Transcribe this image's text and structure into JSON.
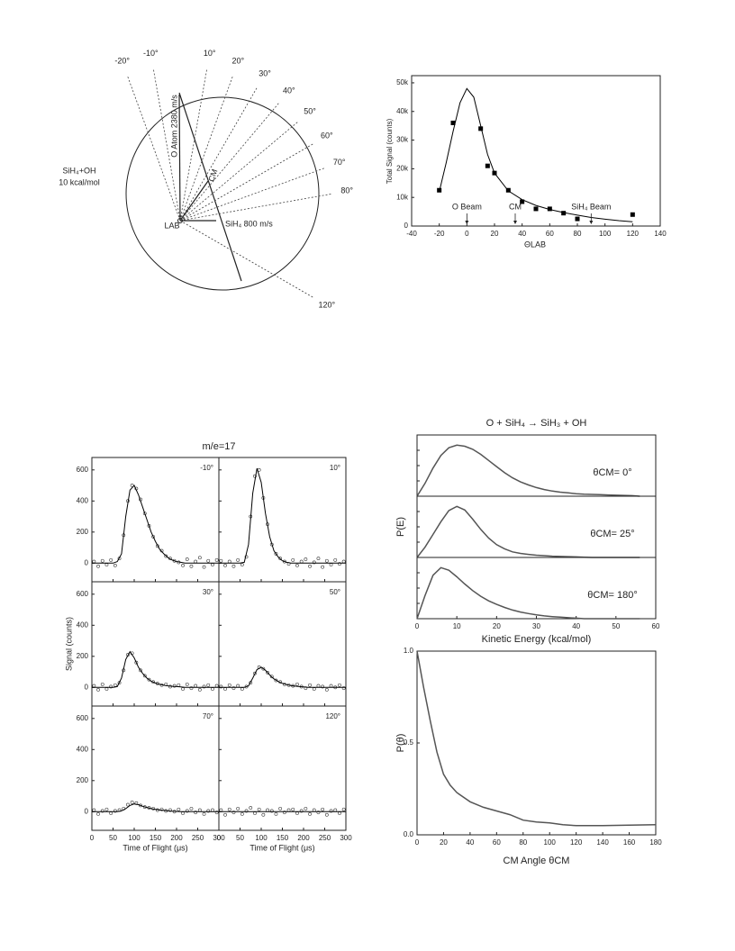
{
  "newton_diagram": {
    "product_label": "SiH₄+OH",
    "energy_label": "10 kcal/mol",
    "o_atom_label": "O Atom 2380 m/s",
    "sih4_label": "SiH₄ 800 m/s",
    "cm_label": "CM",
    "lab_label": "LAB",
    "angles": [
      {
        "value": -20,
        "label": "-20°"
      },
      {
        "value": -10,
        "label": "-10°"
      },
      {
        "value": 10,
        "label": "10°"
      },
      {
        "value": 20,
        "label": "20°"
      },
      {
        "value": 30,
        "label": "30°"
      },
      {
        "value": 40,
        "label": "40°"
      },
      {
        "value": 50,
        "label": "50°"
      },
      {
        "value": 60,
        "label": "60°"
      },
      {
        "value": 70,
        "label": "70°"
      },
      {
        "value": 80,
        "label": "80°"
      },
      {
        "value": 120,
        "label": "120°"
      }
    ]
  },
  "chart_data": [
    {
      "type": "scatter",
      "xlabel": "ΘLAB",
      "ylabel": "Total Signal (counts)",
      "x": [
        -20,
        -10,
        10,
        15,
        20,
        30,
        40,
        50,
        60,
        70,
        80,
        120
      ],
      "values": [
        12500,
        36000,
        34000,
        21000,
        18500,
        12500,
        8500,
        6000,
        6000,
        4500,
        2500,
        4000
      ],
      "fit_x": [
        -20,
        -15,
        -10,
        -5,
        0,
        5,
        10,
        15,
        20,
        30,
        40,
        50,
        60,
        70,
        80,
        90,
        100,
        110,
        120
      ],
      "fit_values": [
        12000,
        22000,
        33000,
        43000,
        48000,
        45000,
        35000,
        25000,
        18500,
        12300,
        9200,
        7200,
        5800,
        4700,
        3800,
        3000,
        2400,
        1900,
        1500
      ],
      "annotations": [
        {
          "text": "O Beam",
          "x": 0
        },
        {
          "text": "CM",
          "x": 35
        },
        {
          "text": "SiH₄ Beam",
          "x": 90
        }
      ],
      "xlim": [
        -40,
        140
      ],
      "xticks": [
        -40,
        -20,
        0,
        20,
        40,
        60,
        80,
        100,
        120,
        140
      ],
      "ylim": [
        0,
        52500
      ],
      "yticks": [
        0,
        {
          "value": 10000,
          "label": "10k"
        },
        {
          "value": 20000,
          "label": "20k"
        },
        {
          "value": 30000,
          "label": "30k"
        },
        {
          "value": 40000,
          "label": "40k"
        },
        {
          "value": 50000,
          "label": "50k"
        }
      ],
      "color": "#000000"
    },
    {
      "type": "scatter",
      "title": "m/e=17",
      "xlabel": "Time of Flight (μs)",
      "ylabel": "Signal (counts)",
      "xlim": [
        0,
        300
      ],
      "xticks": [
        0,
        50,
        100,
        150,
        200,
        250,
        300
      ],
      "ylim": [
        -120,
        680
      ],
      "yticks": [
        0,
        200,
        400,
        600
      ],
      "fit_x": [
        0,
        10,
        20,
        30,
        40,
        50,
        60,
        70,
        80,
        90,
        100,
        110,
        120,
        130,
        140,
        150,
        160,
        170,
        180,
        190,
        200,
        210,
        220,
        230,
        240,
        250,
        260,
        270,
        280,
        290,
        300
      ],
      "x": [
        5,
        15,
        25,
        35,
        45,
        55,
        65,
        75,
        85,
        95,
        105,
        115,
        125,
        135,
        145,
        155,
        165,
        175,
        185,
        195,
        205,
        215,
        225,
        235,
        245,
        255,
        265,
        275,
        285,
        295
      ],
      "panels": [
        {
          "label": "-10°",
          "fit": [
            0,
            0,
            0,
            0,
            0,
            0,
            10,
            60,
            300,
            470,
            500,
            440,
            360,
            280,
            200,
            140,
            90,
            60,
            35,
            20,
            10,
            5,
            0,
            0,
            0,
            0,
            0,
            0,
            0,
            0,
            0
          ],
          "values": [
            10,
            -20,
            15,
            -10,
            20,
            -15,
            30,
            180,
            400,
            500,
            480,
            410,
            320,
            240,
            170,
            110,
            80,
            45,
            30,
            15,
            5,
            -15,
            25,
            -20,
            10,
            35,
            -25,
            15,
            -10,
            20
          ]
        },
        {
          "label": "10°",
          "fit": [
            0,
            0,
            0,
            0,
            0,
            0,
            5,
            120,
            450,
            610,
            520,
            320,
            170,
            80,
            40,
            15,
            5,
            0,
            0,
            0,
            0,
            0,
            0,
            0,
            0,
            0,
            0,
            0,
            0,
            0,
            0
          ],
          "values": [
            15,
            -15,
            10,
            -20,
            20,
            -10,
            40,
            300,
            560,
            600,
            420,
            250,
            120,
            60,
            30,
            10,
            -5,
            20,
            -15,
            10,
            25,
            -20,
            5,
            30,
            -25,
            15,
            -10,
            20,
            -5,
            10
          ]
        },
        {
          "label": "30°",
          "fit": [
            0,
            0,
            0,
            0,
            0,
            0,
            5,
            60,
            180,
            230,
            190,
            130,
            90,
            60,
            40,
            28,
            20,
            14,
            10,
            7,
            5,
            3,
            0,
            0,
            0,
            0,
            0,
            0,
            0,
            0,
            0
          ],
          "values": [
            10,
            -15,
            20,
            -10,
            5,
            15,
            30,
            110,
            210,
            220,
            160,
            110,
            75,
            50,
            35,
            25,
            15,
            20,
            5,
            10,
            15,
            -10,
            20,
            -5,
            10,
            -15,
            5,
            15,
            -10,
            10
          ]
        },
        {
          "label": "50°",
          "fit": [
            0,
            0,
            0,
            0,
            0,
            0,
            0,
            10,
            60,
            115,
            130,
            110,
            80,
            55,
            38,
            26,
            18,
            12,
            8,
            5,
            3,
            0,
            0,
            0,
            0,
            0,
            0,
            0,
            0,
            0,
            0
          ],
          "values": [
            5,
            -10,
            15,
            -5,
            10,
            -10,
            5,
            30,
            90,
            130,
            120,
            95,
            70,
            45,
            35,
            20,
            15,
            10,
            20,
            5,
            -5,
            15,
            -10,
            10,
            5,
            -15,
            10,
            0,
            15,
            -5
          ]
        },
        {
          "label": "70°",
          "fit": [
            0,
            0,
            0,
            0,
            0,
            0,
            0,
            5,
            20,
            40,
            50,
            45,
            35,
            27,
            20,
            15,
            11,
            8,
            5,
            3,
            2,
            0,
            0,
            0,
            0,
            0,
            0,
            0,
            0,
            0,
            0
          ],
          "values": [
            10,
            -15,
            5,
            15,
            -10,
            5,
            10,
            20,
            45,
            60,
            55,
            40,
            30,
            25,
            20,
            10,
            15,
            5,
            10,
            0,
            15,
            -10,
            5,
            20,
            -5,
            10,
            -15,
            5,
            10,
            -5
          ]
        },
        {
          "label": "120°",
          "fit": [
            0,
            0,
            0,
            0,
            0,
            0,
            0,
            0,
            0,
            0,
            0,
            0,
            0,
            0,
            0,
            0,
            0,
            0,
            0,
            0,
            0,
            0,
            0,
            0,
            0,
            0,
            0,
            0,
            0,
            0,
            0
          ],
          "values": [
            10,
            -20,
            15,
            -5,
            20,
            -15,
            5,
            25,
            -10,
            15,
            -20,
            10,
            5,
            -15,
            20,
            -5,
            10,
            15,
            -10,
            5,
            20,
            -15,
            10,
            -5,
            15,
            -20,
            5,
            10,
            -10,
            15
          ]
        }
      ],
      "color": "#333333"
    },
    {
      "type": "line",
      "title": "O + SiH₄ → SiH₃ + OH",
      "xlabel": "Kinetic Energy (kcal/mol)",
      "ylabel": "P(E)",
      "xlim": [
        0,
        60
      ],
      "xticks": [
        0,
        10,
        20,
        30,
        40,
        50,
        60
      ],
      "ylim": [
        0,
        1.2
      ],
      "x": [
        0,
        2,
        4,
        6,
        8,
        10,
        12,
        14,
        16,
        18,
        20,
        22,
        24,
        26,
        28,
        30,
        32,
        34,
        36,
        38,
        40,
        42,
        44,
        46,
        48,
        50,
        52,
        54,
        56
      ],
      "panels": [
        {
          "label": "θCM= 0°",
          "values": [
            0,
            0.25,
            0.55,
            0.8,
            0.95,
            1.0,
            0.98,
            0.92,
            0.82,
            0.7,
            0.58,
            0.46,
            0.36,
            0.28,
            0.22,
            0.17,
            0.13,
            0.1,
            0.08,
            0.065,
            0.05,
            0.04,
            0.035,
            0.03,
            0.025,
            0.02,
            0.015,
            0.01,
            0
          ]
        },
        {
          "label": "θCM= 25°",
          "values": [
            0,
            0.2,
            0.45,
            0.7,
            0.92,
            1.0,
            0.93,
            0.75,
            0.55,
            0.38,
            0.25,
            0.17,
            0.11,
            0.08,
            0.06,
            0.045,
            0.035,
            0.025,
            0.02,
            0.015,
            0.01,
            0.005,
            0,
            0,
            0,
            0,
            0,
            0,
            0
          ]
        },
        {
          "label": "θCM= 180°",
          "values": [
            0,
            0.45,
            0.85,
            1.0,
            0.95,
            0.82,
            0.68,
            0.55,
            0.44,
            0.35,
            0.28,
            0.22,
            0.17,
            0.13,
            0.1,
            0.075,
            0.055,
            0.04,
            0.03,
            0.02,
            0.01,
            0,
            0,
            0,
            0,
            0,
            0,
            0,
            0
          ]
        }
      ],
      "color": "#555555"
    },
    {
      "type": "line",
      "xlabel": "CM Angle θCM",
      "ylabel": "P(θ)",
      "xlim": [
        0,
        180
      ],
      "xticks": [
        0,
        20,
        40,
        60,
        80,
        100,
        120,
        140,
        160,
        180
      ],
      "ylim": [
        0,
        1
      ],
      "yticks": [
        {
          "value": 0,
          "label": "0.0"
        },
        0.5,
        {
          "value": 1,
          "label": "1.0"
        }
      ],
      "x": [
        0,
        5,
        10,
        15,
        20,
        25,
        30,
        40,
        50,
        60,
        70,
        80,
        90,
        100,
        110,
        120,
        140,
        160,
        180
      ],
      "values": [
        1.0,
        0.8,
        0.62,
        0.45,
        0.33,
        0.27,
        0.23,
        0.18,
        0.15,
        0.13,
        0.11,
        0.08,
        0.07,
        0.065,
        0.055,
        0.05,
        0.05,
        0.053,
        0.055
      ],
      "color": "#555555"
    }
  ]
}
